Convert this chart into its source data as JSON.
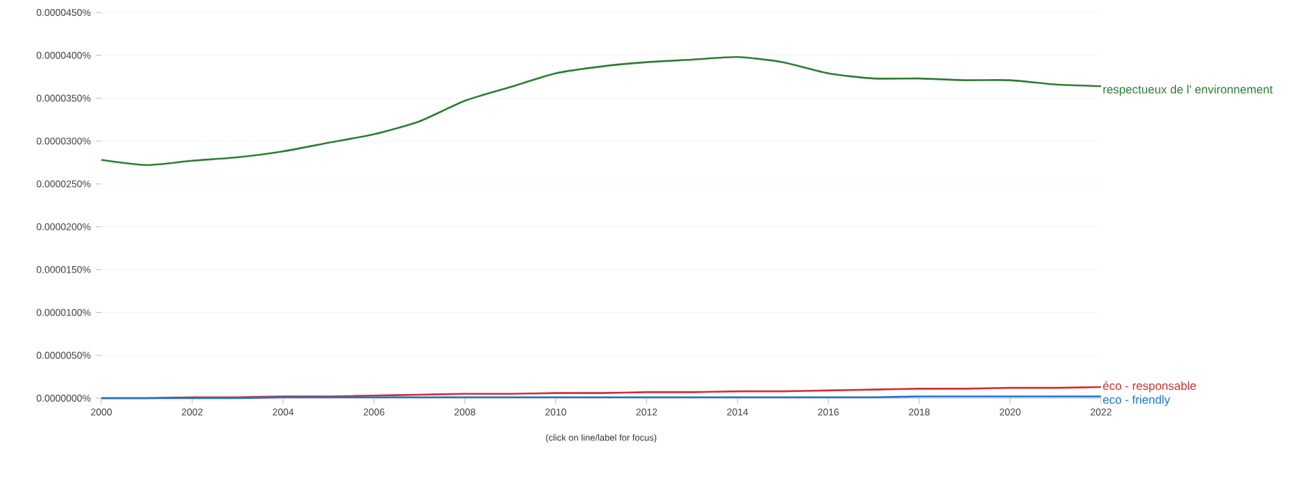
{
  "chart_data": {
    "type": "line",
    "x": [
      2000,
      2001,
      2002,
      2003,
      2004,
      2005,
      2006,
      2007,
      2008,
      2009,
      2010,
      2011,
      2012,
      2013,
      2014,
      2015,
      2016,
      2017,
      2018,
      2019,
      2020,
      2021,
      2022
    ],
    "series": [
      {
        "name": "respectueux de l' environnement",
        "color": "#2e7d32",
        "values": [
          2.78e-05,
          2.72e-05,
          2.77e-05,
          2.81e-05,
          2.88e-05,
          2.98e-05,
          3.08e-05,
          3.23e-05,
          3.47e-05,
          3.63e-05,
          3.79e-05,
          3.87e-05,
          3.92e-05,
          3.95e-05,
          3.98e-05,
          3.92e-05,
          3.79e-05,
          3.73e-05,
          3.73e-05,
          3.71e-05,
          3.71e-05,
          3.66e-05,
          3.64e-05
        ]
      },
      {
        "name": "éco - responsable",
        "color": "#d32f2f",
        "values": [
          0.0,
          0.0,
          1e-07,
          1e-07,
          2e-07,
          2e-07,
          3e-07,
          4e-07,
          5e-07,
          5e-07,
          6e-07,
          6e-07,
          7e-07,
          7e-07,
          8e-07,
          8e-07,
          9e-07,
          1e-06,
          1.1e-06,
          1.1e-06,
          1.2e-06,
          1.2e-06,
          1.3e-06
        ]
      },
      {
        "name": "eco - friendly",
        "color": "#1976d2",
        "values": [
          0.0,
          0.0,
          0.0,
          0.0,
          1e-07,
          1e-07,
          1e-07,
          1e-07,
          1e-07,
          1e-07,
          1e-07,
          1e-07,
          1e-07,
          1e-07,
          1e-07,
          1e-07,
          1e-07,
          1e-07,
          2e-07,
          2e-07,
          2e-07,
          2e-07,
          2e-07
        ]
      }
    ],
    "xlim": [
      2000,
      2022
    ],
    "xticks": [
      2000,
      2002,
      2004,
      2006,
      2008,
      2010,
      2012,
      2014,
      2016,
      2018,
      2020,
      2022
    ],
    "ylim": [
      0,
      4.5e-05
    ],
    "yticks": [
      {
        "value": 0,
        "label": "0.0000000%"
      },
      {
        "value": 5e-06,
        "label": "0.0000050%"
      },
      {
        "value": 1e-05,
        "label": "0.0000100%"
      },
      {
        "value": 1.5e-05,
        "label": "0.0000150%"
      },
      {
        "value": 2e-05,
        "label": "0.0000200%"
      },
      {
        "value": 2.5e-05,
        "label": "0.0000250%"
      },
      {
        "value": 3e-05,
        "label": "0.0000300%"
      },
      {
        "value": 3.5e-05,
        "label": "0.0000350%"
      },
      {
        "value": 4e-05,
        "label": "0.0000400%"
      },
      {
        "value": 4.5e-05,
        "label": "0.0000450%"
      }
    ],
    "grid": "y",
    "marker": "none",
    "line_style": "solid",
    "annotations": [
      "(click on line/label for focus)"
    ]
  }
}
